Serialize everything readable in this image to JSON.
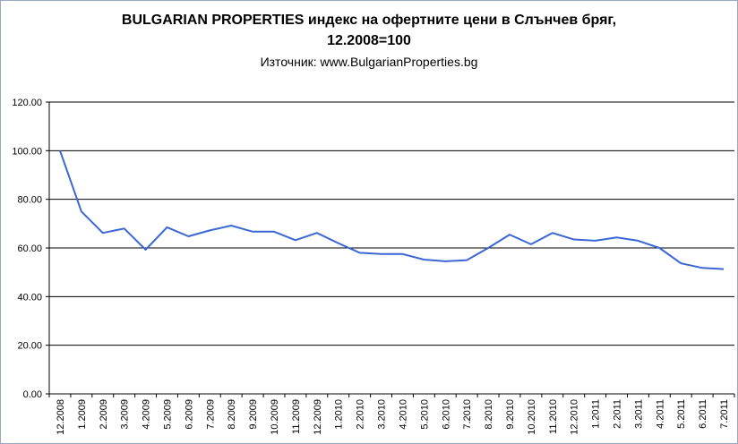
{
  "chart_data": {
    "type": "line",
    "title_line1": "BULGARIAN PROPERTIES индекс на офертните цени в Слънчев бряг,",
    "title_line2": "12.2008=100",
    "subtitle": "Източник: www.BulgarianProperties.bg",
    "ylim": [
      0,
      120
    ],
    "yticks": [
      "0.00",
      "20.00",
      "40.00",
      "60.00",
      "80.00",
      "100.00",
      "120.00"
    ],
    "grid": "horizontal",
    "legend": "none",
    "line_color": "#3a66d6",
    "categories": [
      "12.2008",
      "1.2009",
      "2.2009",
      "3.2009",
      "4.2009",
      "5.2009",
      "6.2009",
      "7.2009",
      "8.2009",
      "9.2009",
      "10.2009",
      "11.2009",
      "12.2009",
      "1.2010",
      "2.2010",
      "3.2010",
      "4.2010",
      "5.2010",
      "6.2010",
      "7.2010",
      "8.2010",
      "9.2010",
      "10.2010",
      "11.2010",
      "12.2010",
      "1.2011",
      "2.2011",
      "3.2011",
      "4.2011",
      "5.2011",
      "6.2011",
      "7.2011"
    ],
    "values": [
      100.0,
      75.0,
      66.2,
      68.0,
      59.3,
      68.5,
      64.8,
      67.2,
      69.2,
      66.7,
      66.7,
      63.2,
      66.2,
      62.0,
      58.0,
      57.5,
      57.5,
      55.2,
      54.5,
      55.0,
      60.0,
      65.5,
      61.5,
      66.2,
      63.5,
      63.0,
      64.3,
      63.0,
      60.0,
      53.7,
      51.8,
      51.3
    ]
  }
}
